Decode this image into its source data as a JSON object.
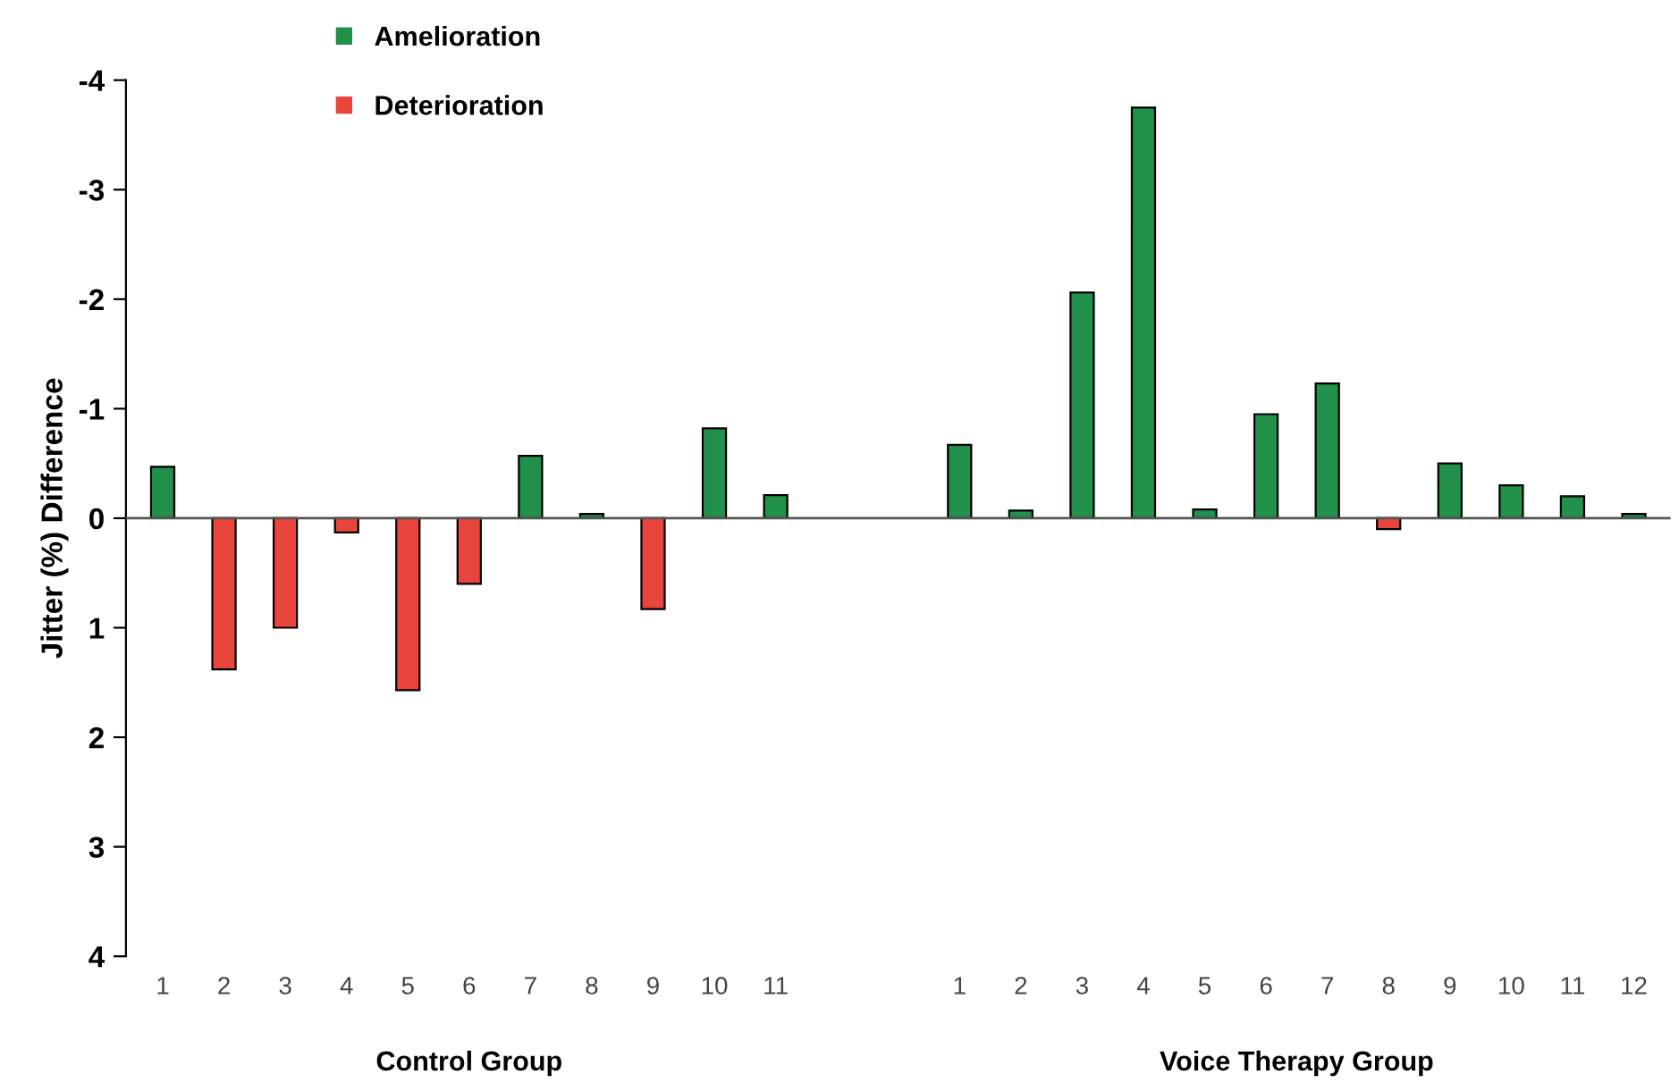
{
  "chart_data": {
    "type": "bar",
    "ylabel": "Jitter (%) Difference",
    "categories": [
      "1",
      "2",
      "3",
      "4",
      "5",
      "6",
      "7",
      "8",
      "9",
      "10",
      "11",
      null,
      null,
      "1",
      "2",
      "3",
      "4",
      "5",
      "6",
      "7",
      "8",
      "9",
      "10",
      "11",
      "12"
    ],
    "series": [
      {
        "name": "Amelioration",
        "color": "#21904a",
        "values": [
          -0.47,
          null,
          null,
          null,
          null,
          null,
          -0.57,
          -0.04,
          null,
          -0.82,
          -0.21,
          null,
          null,
          -0.67,
          -0.07,
          -2.06,
          -3.75,
          -0.08,
          -0.95,
          -1.23,
          null,
          -0.5,
          -0.3,
          -0.2,
          -0.04
        ]
      },
      {
        "name": "Deterioration",
        "color": "#e8463c",
        "values": [
          null,
          1.38,
          1.0,
          0.13,
          1.57,
          0.6,
          null,
          null,
          0.83,
          null,
          null,
          null,
          null,
          null,
          null,
          null,
          null,
          null,
          null,
          null,
          0.1,
          null,
          null,
          null,
          null
        ]
      }
    ],
    "ylim": [
      4,
      -4
    ],
    "yticks": [
      -4,
      -3,
      -2,
      -1,
      0,
      1,
      2,
      3,
      4
    ],
    "annotations": [
      "Control Group",
      "Voice Therapy Group"
    ],
    "ref_lines": [
      {
        "axis": "y",
        "value": 0,
        "color": "#555555"
      }
    ],
    "legend": "top left",
    "grid": false
  }
}
